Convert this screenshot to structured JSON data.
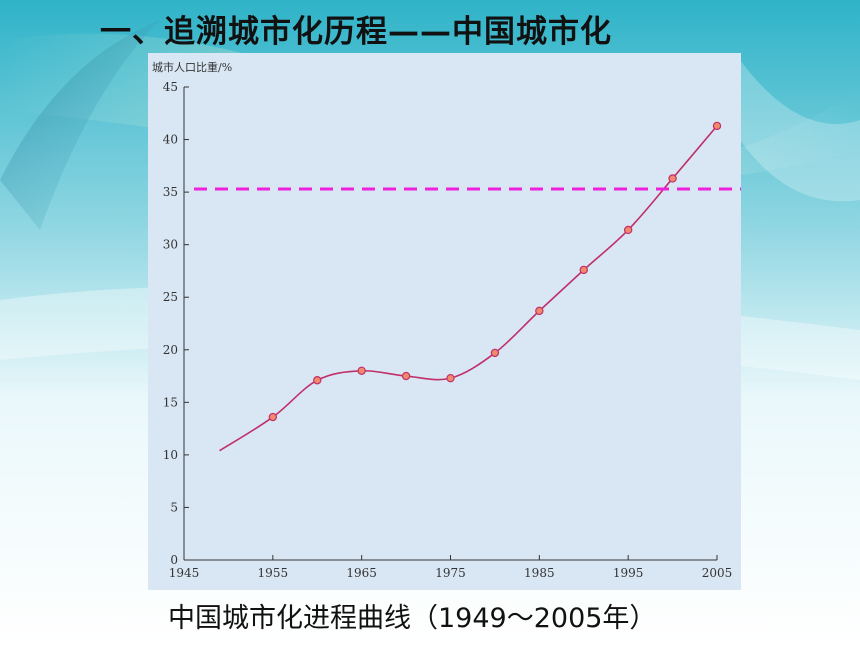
{
  "slide": {
    "title": "一、追溯城市化历程——中国城市化",
    "caption": "中国城市化进程曲线（1949～2005年）"
  },
  "colors": {
    "curve": "#c0306a",
    "marker_fill": "#f08a6a",
    "marker_stroke": "#c0306a",
    "reference_line": "#ee22dd",
    "panel": "#d9e7f4",
    "axis": "#333333"
  },
  "chart_data": {
    "type": "line",
    "title": "",
    "ylabel": "城市人口比重/%",
    "xlabel": "",
    "xlim": [
      1945,
      2005
    ],
    "ylim": [
      0,
      45
    ],
    "x_ticks": [
      1945,
      1955,
      1965,
      1975,
      1985,
      1995,
      2005
    ],
    "y_ticks": [
      0,
      5,
      10,
      15,
      20,
      25,
      30,
      35,
      40,
      45
    ],
    "grid": false,
    "series": [
      {
        "x": [
          1949,
          1955,
          1960,
          1965,
          1970,
          1975,
          1980,
          1985,
          1990,
          1995,
          2000,
          2005
        ],
        "y": [
          10.4,
          13.6,
          17.1,
          18.0,
          17.5,
          17.3,
          19.7,
          23.7,
          27.6,
          31.4,
          36.3,
          41.3
        ],
        "markers_from_index": 1
      }
    ],
    "reference_line": {
      "y": 35.3,
      "style": "dashed"
    }
  }
}
